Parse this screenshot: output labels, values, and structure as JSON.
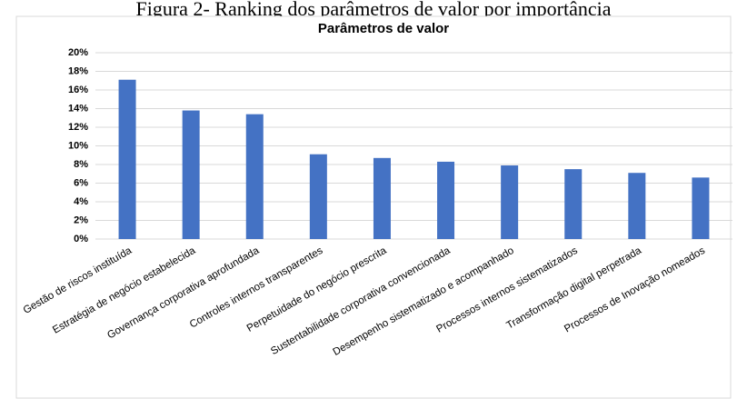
{
  "caption": "Figura 2- Ranking dos parâmetros de valor por importância",
  "chart_data": {
    "type": "bar",
    "title": "Parâmetros de valor",
    "categories": [
      "Gestão de riscos instituída",
      "Estratégia de negócio estabelecida",
      "Governança corporativa aprofundada",
      "Controles internos transparentes",
      "Perpetuidade do negócio prescrita",
      "Sustentabilidade corporativa convencionada",
      "Desempenho sistematizado e acompanhado",
      "Processos internos sistematizados",
      "Transformação digital perpetrada",
      "Processos de Inovação nomeados"
    ],
    "values": [
      17.1,
      13.8,
      13.4,
      9.1,
      8.7,
      8.3,
      7.9,
      7.5,
      7.1,
      6.6
    ],
    "color": "#4472c4",
    "ylim": [
      0,
      20
    ],
    "yticks": [
      {
        "value": 0,
        "label": "0%"
      },
      {
        "value": 2,
        "label": "2%"
      },
      {
        "value": 4,
        "label": "4%"
      },
      {
        "value": 6,
        "label": "6%"
      },
      {
        "value": 8,
        "label": "8%"
      },
      {
        "value": 10,
        "label": "10%"
      },
      {
        "value": 12,
        "label": "12%"
      },
      {
        "value": 14,
        "label": "14%"
      },
      {
        "value": 16,
        "label": "16%"
      },
      {
        "value": 18,
        "label": "18%"
      },
      {
        "value": 20,
        "label": "20%"
      }
    ],
    "grid": true
  }
}
